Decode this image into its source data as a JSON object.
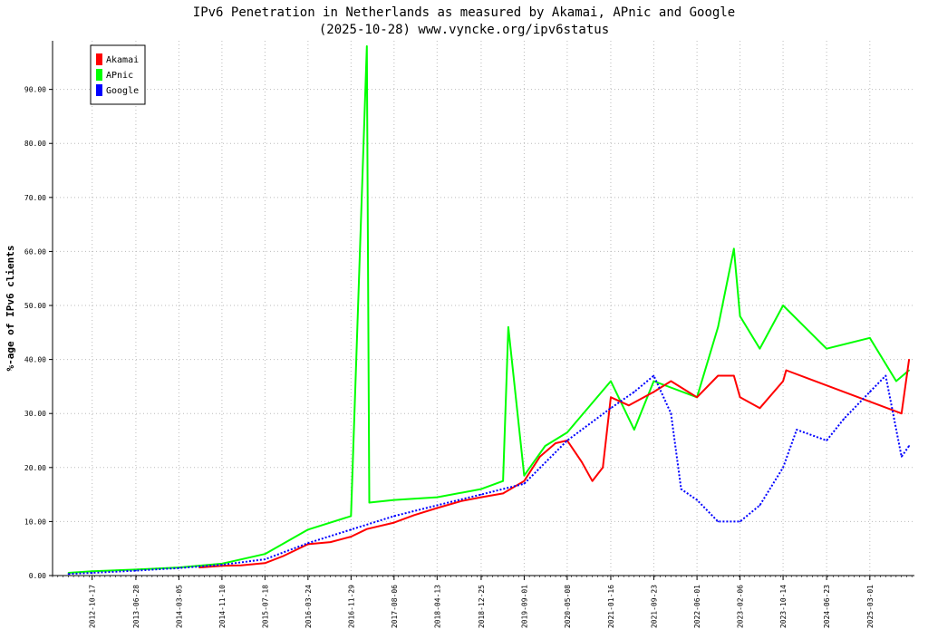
{
  "chart_data": {
    "type": "line",
    "title": "IPv6 Penetration in Netherlands as measured by Akamai, APnic and Google",
    "subtitle": "(2025-10-28) www.vyncke.org/ipv6status",
    "ylabel": "%-age of IPv6 clients",
    "xlabel": "",
    "ylim": [
      0,
      99
    ],
    "xlim": [
      "2012-03-01",
      "2025-11-15"
    ],
    "grid": true,
    "legend_position": "top-left",
    "y_ticks": [
      "0.00",
      "10.00",
      "20.00",
      "30.00",
      "40.00",
      "50.00",
      "60.00",
      "70.00",
      "80.00",
      "90.00"
    ],
    "x_ticks": [
      "2012-10-17",
      "2013-06-28",
      "2014-03-05",
      "2014-11-10",
      "2015-07-18",
      "2016-03-24",
      "2016-11-29",
      "2017-08-06",
      "2018-04-13",
      "2018-12-25",
      "2019-09-01",
      "2020-05-08",
      "2021-01-16",
      "2021-09-23",
      "2022-06-01",
      "2023-02-06",
      "2023-10-14",
      "2024-06-23",
      "2025-03-01"
    ],
    "series": [
      {
        "name": "Akamai",
        "color": "#ff0000",
        "points": [
          [
            "2014-07-01",
            1.5
          ],
          [
            "2014-11-10",
            1.8
          ],
          [
            "2015-03-01",
            1.9
          ],
          [
            "2015-07-18",
            2.3
          ],
          [
            "2015-11-01",
            3.6
          ],
          [
            "2016-03-24",
            5.8
          ],
          [
            "2016-08-01",
            6.2
          ],
          [
            "2016-11-29",
            7.2
          ],
          [
            "2017-03-01",
            8.6
          ],
          [
            "2017-08-06",
            9.8
          ],
          [
            "2017-12-01",
            11.2
          ],
          [
            "2018-04-13",
            12.5
          ],
          [
            "2018-09-01",
            13.8
          ],
          [
            "2018-12-25",
            14.5
          ],
          [
            "2019-05-01",
            15.2
          ],
          [
            "2019-09-01",
            17.5
          ],
          [
            "2019-12-01",
            22.0
          ],
          [
            "2020-03-01",
            24.5
          ],
          [
            "2020-05-08",
            25.0
          ],
          [
            "2020-08-01",
            21.0
          ],
          [
            "2020-10-01",
            17.5
          ],
          [
            "2020-12-01",
            20.0
          ],
          [
            "2021-01-16",
            33.0
          ],
          [
            "2021-05-01",
            31.5
          ],
          [
            "2021-09-23",
            34.0
          ],
          [
            "2022-01-01",
            36.0
          ],
          [
            "2022-06-01",
            33.0
          ],
          [
            "2022-10-01",
            37.0
          ],
          [
            "2023-01-01",
            37.0
          ],
          [
            "2023-02-06",
            33.0
          ],
          [
            "2023-06-01",
            31.0
          ],
          [
            "2023-10-14",
            36.0
          ],
          [
            "2023-11-01",
            38.0
          ],
          [
            "2025-09-01",
            30.0
          ],
          [
            "2025-10-15",
            40.0
          ]
        ]
      },
      {
        "name": "APnic",
        "color": "#00ff00",
        "points": [
          [
            "2012-06-01",
            0.5
          ],
          [
            "2012-10-17",
            0.8
          ],
          [
            "2013-06-28",
            1.1
          ],
          [
            "2014-03-05",
            1.5
          ],
          [
            "2014-11-10",
            2.2
          ],
          [
            "2015-07-18",
            4.0
          ],
          [
            "2016-03-24",
            8.5
          ],
          [
            "2016-11-29",
            11.0
          ],
          [
            "2017-03-01",
            98.0
          ],
          [
            "2017-03-15",
            13.5
          ],
          [
            "2017-08-06",
            14.0
          ],
          [
            "2018-04-13",
            14.5
          ],
          [
            "2018-12-25",
            16.0
          ],
          [
            "2019-05-01",
            17.5
          ],
          [
            "2019-06-01",
            46.0
          ],
          [
            "2019-09-01",
            18.5
          ],
          [
            "2020-01-01",
            24.0
          ],
          [
            "2020-05-08",
            26.5
          ],
          [
            "2021-01-16",
            36.0
          ],
          [
            "2021-06-01",
            27.0
          ],
          [
            "2021-09-23",
            36.0
          ],
          [
            "2022-06-01",
            33.0
          ],
          [
            "2022-10-01",
            46.0
          ],
          [
            "2023-01-01",
            60.5
          ],
          [
            "2023-02-06",
            48.0
          ],
          [
            "2023-06-01",
            42.0
          ],
          [
            "2023-10-14",
            50.0
          ],
          [
            "2024-06-23",
            42.0
          ],
          [
            "2025-03-01",
            44.0
          ],
          [
            "2025-08-01",
            36.0
          ],
          [
            "2025-10-15",
            38.0
          ]
        ]
      },
      {
        "name": "Google",
        "color": "#0000ff",
        "points": [
          [
            "2012-06-01",
            0.3
          ],
          [
            "2012-10-17",
            0.5
          ],
          [
            "2013-06-28",
            0.9
          ],
          [
            "2014-03-05",
            1.4
          ],
          [
            "2014-11-10",
            2.0
          ],
          [
            "2015-07-18",
            3.0
          ],
          [
            "2016-03-24",
            6.0
          ],
          [
            "2016-11-29",
            8.5
          ],
          [
            "2017-08-06",
            11.0
          ],
          [
            "2018-04-13",
            13.0
          ],
          [
            "2018-12-25",
            15.0
          ],
          [
            "2019-09-01",
            17.0
          ],
          [
            "2020-05-08",
            25.0
          ],
          [
            "2021-01-16",
            31.0
          ],
          [
            "2021-06-01",
            34.0
          ],
          [
            "2021-09-23",
            37.0
          ],
          [
            "2022-01-01",
            30.0
          ],
          [
            "2022-03-01",
            16.0
          ],
          [
            "2022-06-01",
            14.0
          ],
          [
            "2022-10-01",
            10.0
          ],
          [
            "2023-02-06",
            10.0
          ],
          [
            "2023-06-01",
            13.0
          ],
          [
            "2023-10-14",
            20.0
          ],
          [
            "2024-01-01",
            27.0
          ],
          [
            "2024-06-23",
            25.0
          ],
          [
            "2024-10-01",
            29.0
          ],
          [
            "2025-03-01",
            34.0
          ],
          [
            "2025-06-01",
            37.0
          ],
          [
            "2025-09-01",
            22.0
          ],
          [
            "2025-10-15",
            24.0
          ]
        ]
      }
    ]
  }
}
